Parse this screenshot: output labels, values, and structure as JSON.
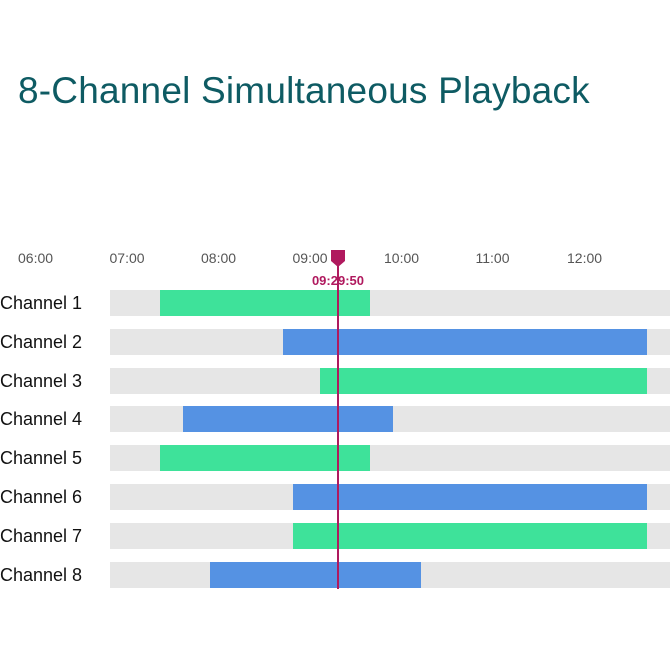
{
  "header": {
    "title": "8-Channel Simultaneous Playback"
  },
  "timeline": {
    "start_hour": 6,
    "end_hour": 12.87,
    "hour_labels": [
      "06:00",
      "07:00",
      "08:00",
      "09:00",
      "10:00",
      "11:00",
      "12:00"
    ]
  },
  "playhead": {
    "time_label": "09:29:50",
    "time_hours": 9.497,
    "color": "#b0195e"
  },
  "colors": {
    "green": "#3ee29a",
    "blue": "#5592e3",
    "track": "#e6e6e6"
  },
  "channels": [
    {
      "label": "Channel 1",
      "start": 7.55,
      "end": 9.85,
      "color": "green"
    },
    {
      "label": "Channel 2",
      "start": 8.9,
      "end": 12.87,
      "color": "blue"
    },
    {
      "label": "Channel 3",
      "start": 9.3,
      "end": 12.87,
      "color": "green"
    },
    {
      "label": "Channel 4",
      "start": 7.8,
      "end": 10.1,
      "color": "blue"
    },
    {
      "label": "Channel 5",
      "start": 7.55,
      "end": 9.85,
      "color": "green"
    },
    {
      "label": "Channel 6",
      "start": 9.0,
      "end": 12.87,
      "color": "blue"
    },
    {
      "label": "Channel 7",
      "start": 9.0,
      "end": 12.87,
      "color": "green"
    },
    {
      "label": "Channel 8",
      "start": 8.1,
      "end": 10.4,
      "color": "blue"
    }
  ]
}
